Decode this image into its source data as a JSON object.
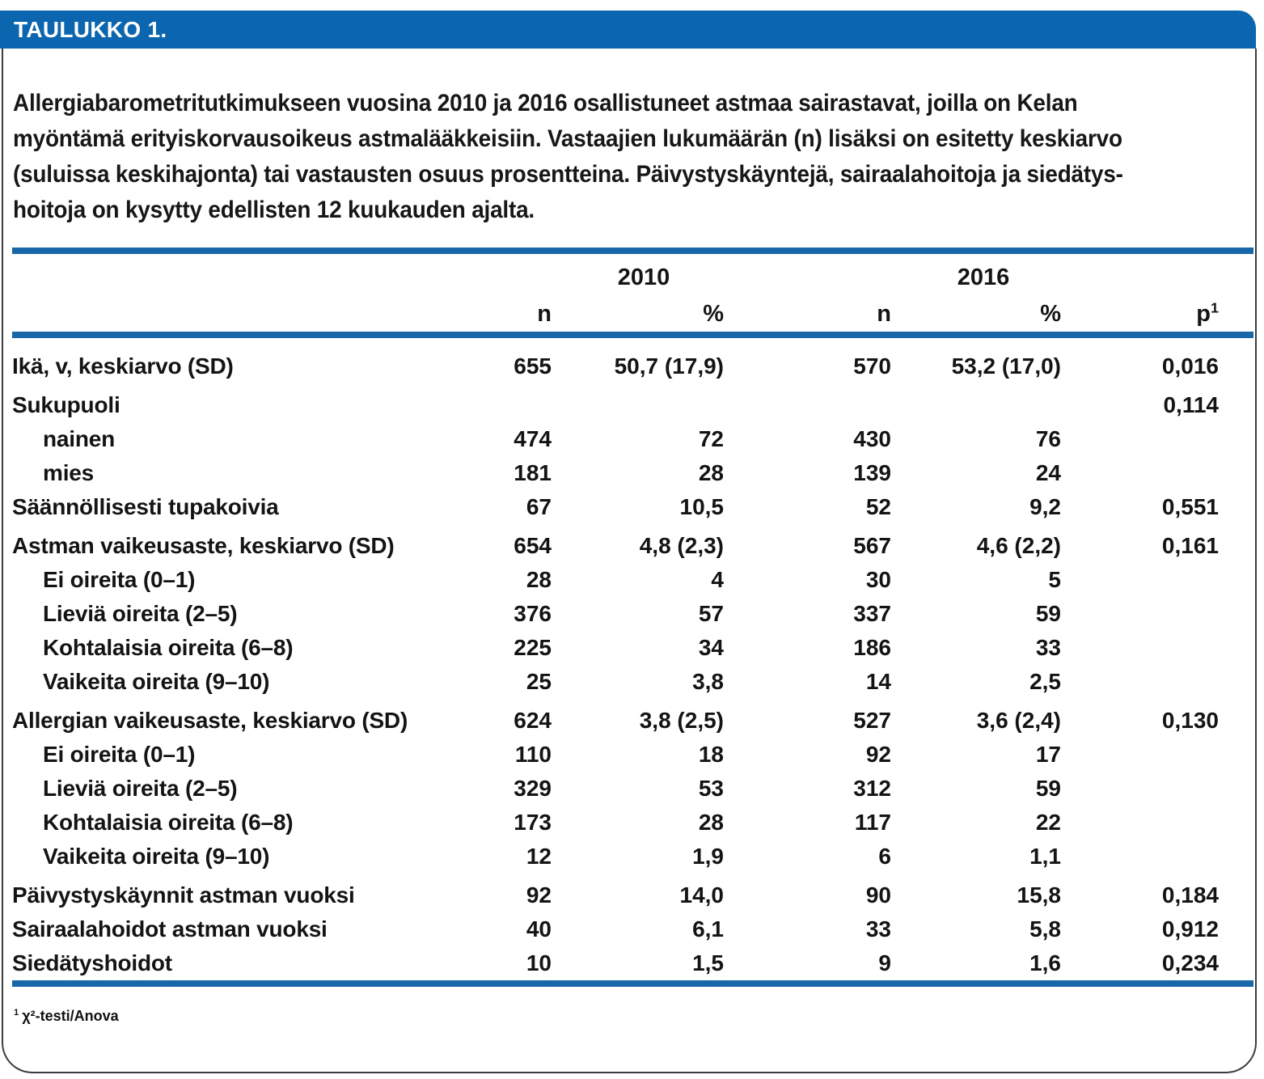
{
  "header": {
    "title": "TAULUKKO 1."
  },
  "caption_lines": [
    "Allergiabarometritutkimukseen vuosina 2010 ja 2016 osallistuneet astmaa sairastavat, joilla on Kelan",
    "myöntämä erityiskorvausoikeus astmalääkkeisiin. Vastaajien lukumäärän (n) lisäksi on esitetty keskiarvo",
    "(suluissa keskihajonta) tai vastausten osuus prosentteina. Päivystyskäyntejä, sairaalahoitoja ja siedätys-",
    "hoitoja on kysytty edellisten 12 kuukauden ajalta."
  ],
  "colors": {
    "header_blue": "#0c66af",
    "rule_blue": "#1767a9"
  },
  "table": {
    "year_headers": [
      "2010",
      "2016"
    ],
    "col_headers": {
      "n1": "n",
      "pct1": "%",
      "n2": "n",
      "pct2": "%",
      "p_base": "p",
      "p_sup": "1"
    },
    "rows": [
      {
        "label": "Ikä, v, keskiarvo (SD)",
        "indent": false,
        "group_start": false,
        "n1": "655",
        "pct1": "50,7 (17,9)",
        "n2": "570",
        "pct2": "53,2 (17,0)",
        "p": "0,016"
      },
      {
        "label": "Sukupuoli",
        "indent": false,
        "group_start": true,
        "n1": "",
        "pct1": "",
        "n2": "",
        "pct2": "",
        "p": "0,114"
      },
      {
        "label": "nainen",
        "indent": true,
        "group_start": false,
        "n1": "474",
        "pct1": "72",
        "n2": "430",
        "pct2": "76",
        "p": ""
      },
      {
        "label": "mies",
        "indent": true,
        "group_start": false,
        "n1": "181",
        "pct1": "28",
        "n2": "139",
        "pct2": "24",
        "p": ""
      },
      {
        "label": "Säännöllisesti tupakoivia",
        "indent": false,
        "group_start": false,
        "n1": "67",
        "pct1": "10,5",
        "n2": "52",
        "pct2": "9,2",
        "p": "0,551"
      },
      {
        "label": "Astman vaikeusaste, keskiarvo (SD)",
        "indent": false,
        "group_start": true,
        "n1": "654",
        "pct1": "4,8 (2,3)",
        "n2": "567",
        "pct2": "4,6 (2,2)",
        "p": "0,161"
      },
      {
        "label": "Ei oireita (0–1)",
        "indent": true,
        "group_start": false,
        "n1": "28",
        "pct1": "4",
        "n2": "30",
        "pct2": "5",
        "p": ""
      },
      {
        "label": "Lieviä oireita (2–5)",
        "indent": true,
        "group_start": false,
        "n1": "376",
        "pct1": "57",
        "n2": "337",
        "pct2": "59",
        "p": ""
      },
      {
        "label": "Kohtalaisia oireita (6–8)",
        "indent": true,
        "group_start": false,
        "n1": "225",
        "pct1": "34",
        "n2": "186",
        "pct2": "33",
        "p": ""
      },
      {
        "label": "Vaikeita oireita (9–10)",
        "indent": true,
        "group_start": false,
        "n1": "25",
        "pct1": "3,8",
        "n2": "14",
        "pct2": "2,5",
        "p": ""
      },
      {
        "label": "Allergian vaikeusaste, keskiarvo (SD)",
        "indent": false,
        "group_start": true,
        "n1": "624",
        "pct1": "3,8 (2,5)",
        "n2": "527",
        "pct2": "3,6 (2,4)",
        "p": "0,130"
      },
      {
        "label": "Ei oireita (0–1)",
        "indent": true,
        "group_start": false,
        "n1": "110",
        "pct1": "18",
        "n2": "92",
        "pct2": "17",
        "p": ""
      },
      {
        "label": "Lieviä oireita (2–5)",
        "indent": true,
        "group_start": false,
        "n1": "329",
        "pct1": "53",
        "n2": "312",
        "pct2": "59",
        "p": ""
      },
      {
        "label": "Kohtalaisia oireita (6–8)",
        "indent": true,
        "group_start": false,
        "n1": "173",
        "pct1": "28",
        "n2": "117",
        "pct2": "22",
        "p": ""
      },
      {
        "label": "Vaikeita oireita (9–10)",
        "indent": true,
        "group_start": false,
        "n1": "12",
        "pct1": "1,9",
        "n2": "6",
        "pct2": "1,1",
        "p": ""
      },
      {
        "label": "Päivystyskäynnit astman vuoksi",
        "indent": false,
        "group_start": true,
        "n1": "92",
        "pct1": "14,0",
        "n2": "90",
        "pct2": "15,8",
        "p": "0,184"
      },
      {
        "label": "Sairaalahoidot astman vuoksi",
        "indent": false,
        "group_start": false,
        "n1": "40",
        "pct1": "6,1",
        "n2": "33",
        "pct2": "5,8",
        "p": "0,912"
      },
      {
        "label": "Siedätyshoidot",
        "indent": false,
        "group_start": false,
        "n1": "10",
        "pct1": "1,5",
        "n2": "9",
        "pct2": "1,6",
        "p": "0,234"
      }
    ]
  },
  "footnote": {
    "sup": "1",
    "text": "χ²-testi/Anova"
  }
}
